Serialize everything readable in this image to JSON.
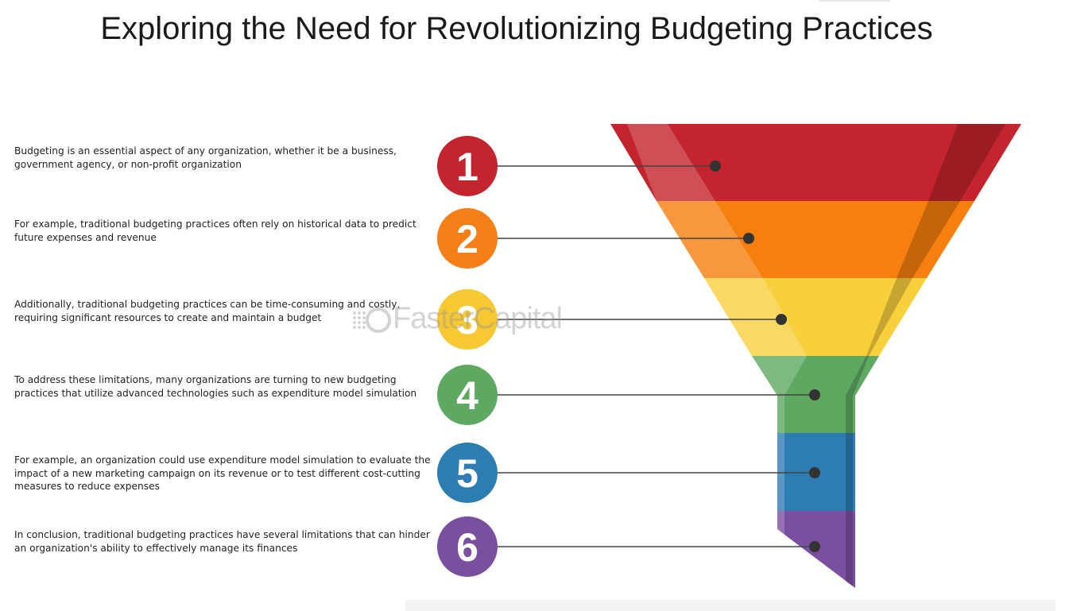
{
  "title": "Exploring the Need for Revolutionizing Budgeting Practices",
  "watermark": "FasterCapital",
  "steps": [
    {
      "number": "1",
      "color": "#c3242e",
      "text": "Budgeting is an essential aspect of any organization, whether it be a business, government agency, or non-profit organization"
    },
    {
      "number": "2",
      "color": "#f57f17",
      "text": "For example, traditional budgeting practices often rely on historical data to predict future expenses and revenue"
    },
    {
      "number": "3",
      "color": "#f6c832",
      "text": "Additionally, traditional budgeting practices can be time-consuming and costly, requiring significant resources to create and maintain a budget"
    },
    {
      "number": "4",
      "color": "#5ea862",
      "text": "To address these limitations, many organizations are turning to new budgeting practices that utilize advanced technologies such as expenditure model simulation"
    },
    {
      "number": "5",
      "color": "#2d7db3",
      "text": "For example, an organization could use expenditure model simulation to evaluate the impact of a new marketing campaign on its revenue or to test different cost-cutting measures to reduce expenses"
    },
    {
      "number": "6",
      "color": "#7b4fa0",
      "text": "In conclusion, traditional budgeting practices have several limitations that can hinder an organization's ability to effectively manage its finances"
    }
  ]
}
